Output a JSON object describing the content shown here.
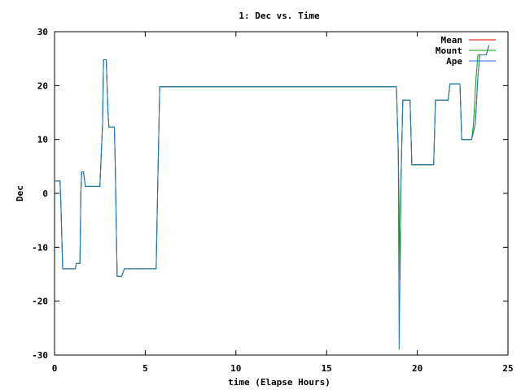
{
  "chart_data": {
    "type": "line",
    "title": "1: Dec vs. Time",
    "xlabel": "time (Elapse Hours)",
    "ylabel": "Dec",
    "xlim": [
      0,
      25
    ],
    "ylim": [
      -30,
      30
    ],
    "xticks": [
      0,
      5,
      10,
      15,
      20,
      25
    ],
    "yticks": [
      -30,
      -20,
      -10,
      0,
      10,
      20,
      30
    ],
    "grid": false,
    "legend_position": "top-right",
    "series": [
      {
        "name": "Mean",
        "color": "#e00000",
        "points": [
          [
            0.0,
            2.3
          ],
          [
            0.3,
            2.3
          ],
          [
            0.35,
            -2
          ],
          [
            0.45,
            -14
          ],
          [
            1.15,
            -14
          ],
          [
            1.2,
            -13
          ],
          [
            1.4,
            -13
          ],
          [
            1.45,
            0
          ],
          [
            1.5,
            4
          ],
          [
            1.6,
            4
          ],
          [
            1.7,
            1.3
          ],
          [
            2.5,
            1.3
          ],
          [
            2.65,
            13
          ],
          [
            2.7,
            24.8
          ],
          [
            2.85,
            24.8
          ],
          [
            2.95,
            15
          ],
          [
            3.0,
            12.3
          ],
          [
            3.3,
            12.3
          ],
          [
            3.35,
            5
          ],
          [
            3.45,
            -15.4
          ],
          [
            3.7,
            -15.4
          ],
          [
            3.85,
            -14
          ],
          [
            5.6,
            -14
          ],
          [
            5.65,
            -5
          ],
          [
            5.8,
            19.8
          ],
          [
            18.85,
            19.8
          ],
          [
            18.95,
            8
          ],
          [
            19.05,
            -16
          ],
          [
            19.1,
            2
          ],
          [
            19.2,
            17.3
          ],
          [
            19.6,
            17.3
          ],
          [
            19.7,
            5.3
          ],
          [
            20.9,
            5.3
          ],
          [
            21.0,
            17.3
          ],
          [
            21.7,
            17.3
          ],
          [
            21.8,
            20.3
          ],
          [
            22.35,
            20.3
          ],
          [
            22.45,
            10
          ],
          [
            23.0,
            10
          ],
          [
            23.2,
            13
          ],
          [
            23.35,
            22
          ],
          [
            23.45,
            25.7
          ],
          [
            23.8,
            25.7
          ],
          [
            23.95,
            27.5
          ]
        ]
      },
      {
        "name": "Mount",
        "color": "#00a000",
        "points": [
          [
            0.0,
            2.3
          ],
          [
            0.3,
            2.3
          ],
          [
            0.35,
            -2
          ],
          [
            0.45,
            -14
          ],
          [
            1.15,
            -14
          ],
          [
            1.2,
            -13
          ],
          [
            1.4,
            -13
          ],
          [
            1.45,
            0
          ],
          [
            1.5,
            4
          ],
          [
            1.6,
            4
          ],
          [
            1.7,
            1.3
          ],
          [
            2.5,
            1.3
          ],
          [
            2.65,
            13
          ],
          [
            2.7,
            24.8
          ],
          [
            2.85,
            24.8
          ],
          [
            2.95,
            15
          ],
          [
            3.0,
            12.3
          ],
          [
            3.3,
            12.3
          ],
          [
            3.35,
            5
          ],
          [
            3.45,
            -15.4
          ],
          [
            3.7,
            -15.4
          ],
          [
            3.85,
            -14
          ],
          [
            5.6,
            -14
          ],
          [
            5.65,
            -5
          ],
          [
            5.8,
            19.8
          ],
          [
            18.85,
            19.8
          ],
          [
            18.95,
            8
          ],
          [
            19.05,
            -16
          ],
          [
            19.1,
            2
          ],
          [
            19.2,
            17.3
          ],
          [
            19.6,
            17.3
          ],
          [
            19.7,
            5.3
          ],
          [
            20.9,
            5.3
          ],
          [
            21.0,
            17.3
          ],
          [
            21.7,
            17.3
          ],
          [
            21.8,
            20.3
          ],
          [
            22.35,
            20.3
          ],
          [
            22.45,
            10
          ],
          [
            23.0,
            10
          ],
          [
            23.1,
            13
          ],
          [
            23.25,
            22
          ],
          [
            23.35,
            25.7
          ],
          [
            23.8,
            25.7
          ],
          [
            23.95,
            27.5
          ]
        ]
      },
      {
        "name": "Ape",
        "color": "#1f77d0",
        "points": [
          [
            0.0,
            2.3
          ],
          [
            0.3,
            2.3
          ],
          [
            0.35,
            -2
          ],
          [
            0.45,
            -14
          ],
          [
            1.15,
            -14
          ],
          [
            1.2,
            -13
          ],
          [
            1.4,
            -13
          ],
          [
            1.45,
            0
          ],
          [
            1.5,
            4
          ],
          [
            1.6,
            4
          ],
          [
            1.7,
            1.3
          ],
          [
            2.5,
            1.3
          ],
          [
            2.65,
            13
          ],
          [
            2.7,
            24.8
          ],
          [
            2.85,
            24.8
          ],
          [
            2.95,
            15
          ],
          [
            3.0,
            12.3
          ],
          [
            3.3,
            12.3
          ],
          [
            3.35,
            5
          ],
          [
            3.45,
            -15.4
          ],
          [
            3.7,
            -15.4
          ],
          [
            3.85,
            -14
          ],
          [
            5.6,
            -14
          ],
          [
            5.65,
            -5
          ],
          [
            5.8,
            19.8
          ],
          [
            9.5,
            19.8
          ],
          [
            18.85,
            19.8
          ],
          [
            18.95,
            8
          ],
          [
            19.0,
            -29
          ],
          [
            19.1,
            2
          ],
          [
            19.2,
            17.3
          ],
          [
            19.6,
            17.3
          ],
          [
            19.7,
            5.3
          ],
          [
            20.9,
            5.3
          ],
          [
            21.0,
            17.3
          ],
          [
            21.7,
            17.3
          ],
          [
            21.8,
            20.3
          ],
          [
            22.35,
            20.3
          ],
          [
            22.45,
            10
          ],
          [
            23.0,
            10
          ],
          [
            23.2,
            13
          ],
          [
            23.35,
            22
          ],
          [
            23.45,
            25.7
          ],
          [
            23.8,
            25.7
          ],
          [
            23.95,
            27.5
          ]
        ]
      }
    ]
  }
}
